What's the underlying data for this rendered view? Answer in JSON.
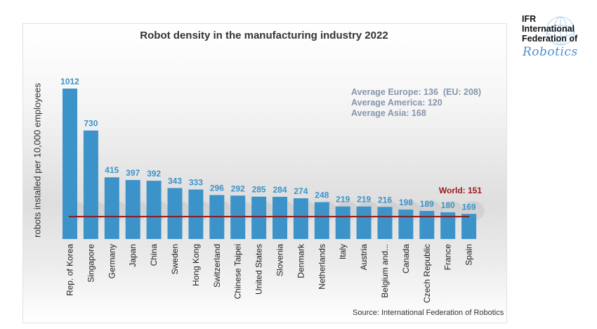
{
  "logo": {
    "line1": "IFR",
    "line2": "International",
    "line3": "Federation of",
    "script": "Robotics"
  },
  "colors": {
    "bar": "#3c93c9",
    "value_label": "#3c93c9",
    "world_line": "#8b1a1a",
    "world_label": "#a01818",
    "averages_text": "#8696ad"
  },
  "averages": {
    "europe": "Average Europe: 136  (EU: 208)",
    "america": "Average America: 120",
    "asia": "Average Asia: 168"
  },
  "source": "Source: International Federation of Robotics",
  "chart_data": {
    "type": "bar",
    "title": "Robot density in the manufacturing industry 2022",
    "xlabel": "",
    "ylabel": "robots installed per 10,000 employees",
    "categories": [
      "Rep. of Korea",
      "Singapore",
      "Germany",
      "Japan",
      "China",
      "Sweden",
      "Hong Kong",
      "Switzerland",
      "Chinese Taipei",
      "United States",
      "Slovenia",
      "Denmark",
      "Netherlands",
      "Italy",
      "Austria",
      "Belgium and...",
      "Canada",
      "Czech Republic",
      "France",
      "Spain"
    ],
    "values": [
      1012,
      730,
      415,
      397,
      392,
      343,
      333,
      296,
      292,
      285,
      284,
      274,
      248,
      219,
      219,
      216,
      198,
      189,
      180,
      169
    ],
    "ylim": [
      0,
      1012
    ],
    "grid": false,
    "legend": "none",
    "reference_line": {
      "label": "World: 151",
      "value": 151
    }
  }
}
